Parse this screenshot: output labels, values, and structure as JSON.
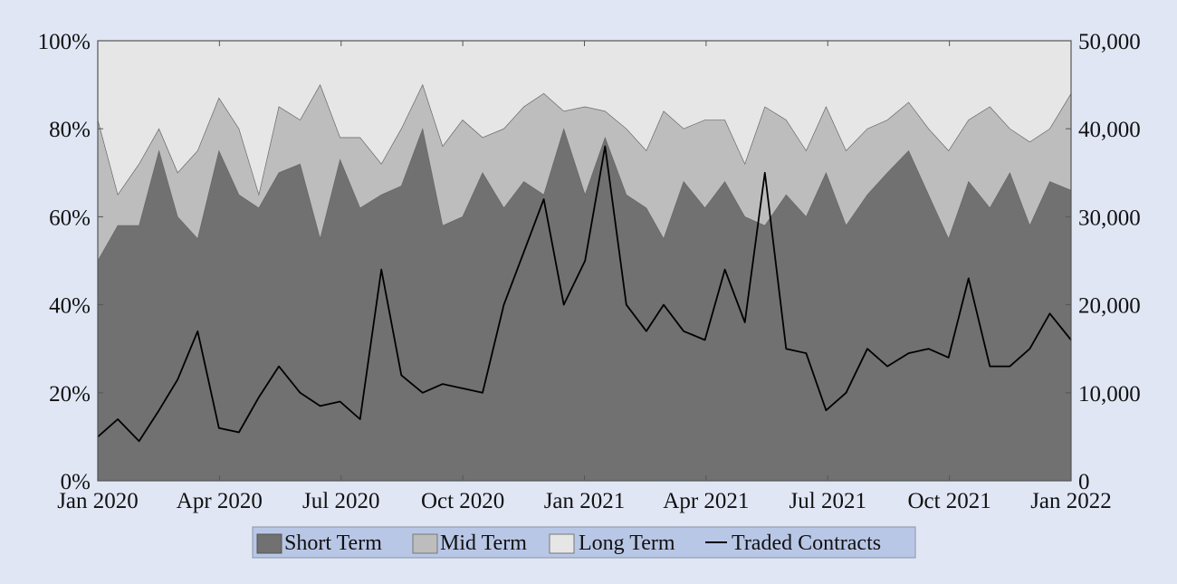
{
  "chart_data": {
    "type": "area",
    "title": "",
    "xlabel": "",
    "ylabel_left": "",
    "ylabel_right": "",
    "x_ticks": [
      "Jan 2020",
      "Apr 2020",
      "Jul 2020",
      "Oct 2020",
      "Jan 2021",
      "Apr 2021",
      "Jul 2021",
      "Oct 2021",
      "Jan 2022"
    ],
    "y_left_ticks": [
      "0%",
      "20%",
      "40%",
      "60%",
      "80%",
      "100%"
    ],
    "y_right_ticks": [
      "0",
      "10,000",
      "20,000",
      "30,000",
      "40,000",
      "50,000"
    ],
    "ylim_left": [
      0,
      100
    ],
    "ylim_right": [
      0,
      50000
    ],
    "xlim": [
      "2020-01-01",
      "2022-01-01"
    ],
    "x": [
      "2020-01-01",
      "2020-01-16",
      "2020-02-01",
      "2020-02-16",
      "2020-03-01",
      "2020-03-16",
      "2020-04-01",
      "2020-04-16",
      "2020-05-01",
      "2020-05-16",
      "2020-06-01",
      "2020-06-16",
      "2020-07-01",
      "2020-07-16",
      "2020-08-01",
      "2020-08-16",
      "2020-09-01",
      "2020-09-16",
      "2020-10-01",
      "2020-10-16",
      "2020-11-01",
      "2020-11-16",
      "2020-12-01",
      "2020-12-16",
      "2021-01-01",
      "2021-01-16",
      "2021-02-01",
      "2021-02-16",
      "2021-03-01",
      "2021-03-16",
      "2021-04-01",
      "2021-04-16",
      "2021-05-01",
      "2021-05-16",
      "2021-06-01",
      "2021-06-16",
      "2021-07-01",
      "2021-07-16",
      "2021-08-01",
      "2021-08-16",
      "2021-09-01",
      "2021-09-16",
      "2021-10-01",
      "2021-10-16",
      "2021-11-01",
      "2021-11-16",
      "2021-12-01",
      "2021-12-16",
      "2022-01-01"
    ],
    "series": [
      {
        "name": "Short Term",
        "kind": "stacked-area",
        "axis": "left",
        "color": "#717171",
        "values": [
          50,
          58,
          58,
          75,
          60,
          55,
          75,
          65,
          62,
          70,
          72,
          55,
          73,
          62,
          65,
          67,
          80,
          58,
          60,
          70,
          62,
          68,
          65,
          80,
          65,
          78,
          65,
          62,
          55,
          68,
          62,
          68,
          60,
          58,
          65,
          60,
          70,
          58,
          65,
          70,
          75,
          65,
          55,
          68,
          62,
          70,
          58,
          68,
          66
        ]
      },
      {
        "name": "Mid Term",
        "kind": "stacked-area",
        "axis": "left",
        "color": "#bdbdbd",
        "values": [
          32,
          7,
          14,
          5,
          10,
          20,
          12,
          15,
          3,
          15,
          10,
          35,
          5,
          16,
          7,
          13,
          10,
          18,
          22,
          8,
          18,
          17,
          23,
          4,
          20,
          6,
          15,
          13,
          29,
          12,
          20,
          14,
          12,
          27,
          17,
          15,
          15,
          17,
          15,
          12,
          11,
          15,
          20,
          14,
          23,
          10,
          19,
          12,
          22
        ]
      },
      {
        "name": "Long Term",
        "kind": "stacked-area",
        "axis": "left",
        "color": "#e6e6e6",
        "values": [
          18,
          35,
          28,
          20,
          30,
          25,
          13,
          20,
          35,
          15,
          18,
          10,
          22,
          22,
          28,
          20,
          10,
          24,
          18,
          22,
          20,
          15,
          12,
          16,
          15,
          16,
          20,
          25,
          16,
          20,
          18,
          18,
          28,
          15,
          18,
          25,
          15,
          25,
          20,
          18,
          14,
          20,
          25,
          18,
          15,
          20,
          23,
          20,
          12
        ]
      },
      {
        "name": "Traded Contracts",
        "kind": "line",
        "axis": "right",
        "color": "#000000",
        "values": [
          5000,
          7000,
          4500,
          8000,
          11500,
          17000,
          6000,
          5500,
          9500,
          13000,
          10000,
          8500,
          9000,
          7000,
          24000,
          12000,
          10000,
          11000,
          10500,
          10000,
          20000,
          26000,
          32000,
          20000,
          25000,
          38000,
          20000,
          17000,
          20000,
          17000,
          16000,
          24000,
          18000,
          35000,
          15000,
          14500,
          8000,
          10000,
          15000,
          13000,
          14500,
          15000,
          14000,
          23000,
          13000,
          13000,
          15000,
          19000,
          16000
        ]
      }
    ],
    "legend": {
      "placement": "bottom-center",
      "entries": [
        "Short Term",
        "Mid Term",
        "Long Term",
        "Traded Contracts"
      ],
      "background": "#b9c7e6"
    },
    "grid": false
  }
}
